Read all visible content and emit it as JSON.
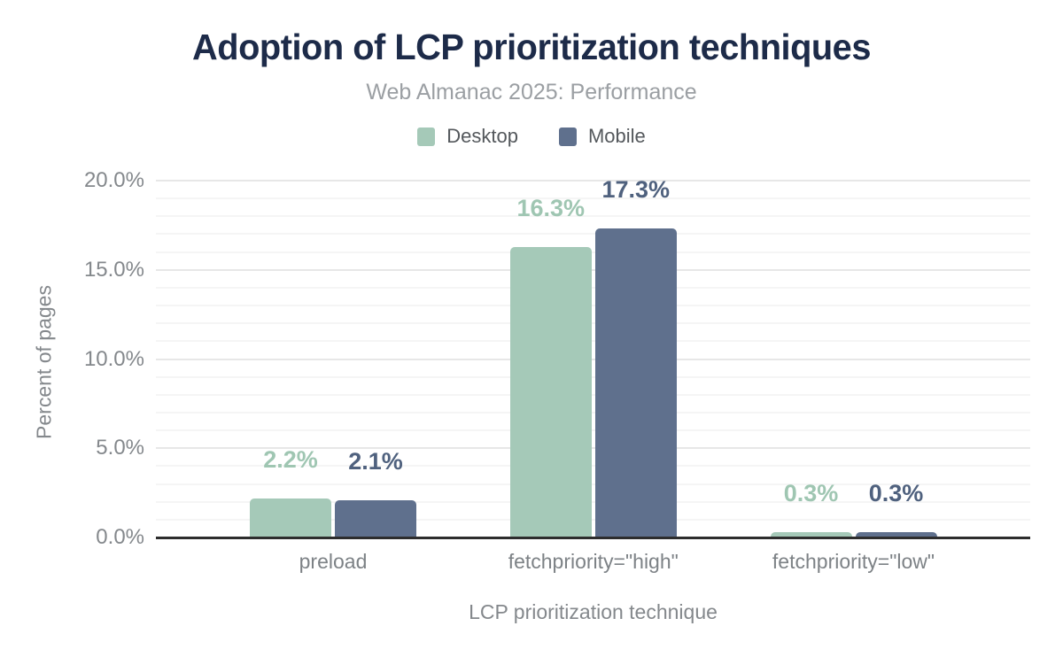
{
  "header": {
    "title": "Adoption of LCP prioritization techniques",
    "subtitle": "Web Almanac 2025: Performance"
  },
  "legend": {
    "items": [
      {
        "name": "desktop",
        "label": "Desktop",
        "color": "#a5c9b8"
      },
      {
        "name": "mobile",
        "label": "Mobile",
        "color": "#5f708d"
      }
    ]
  },
  "chart_data": {
    "type": "bar",
    "title": "Adoption of LCP prioritization techniques",
    "subtitle": "Web Almanac 2025: Performance",
    "categories": [
      "preload",
      "fetchpriority=\"high\"",
      "fetchpriority=\"low\""
    ],
    "series": [
      {
        "name": "Desktop",
        "color": "#a5c9b8",
        "label_color": "#9fc6b2",
        "values": [
          2.2,
          16.3,
          0.3
        ],
        "labels": [
          "2.2%",
          "16.3%",
          "0.3%"
        ]
      },
      {
        "name": "Mobile",
        "color": "#5f708d",
        "label_color": "#4f617e",
        "values": [
          2.1,
          17.3,
          0.3
        ],
        "labels": [
          "2.1%",
          "17.3%",
          "0.3%"
        ]
      }
    ],
    "xlabel": "LCP prioritization technique",
    "ylabel": "Percent of pages",
    "ylim": [
      0,
      20
    ],
    "y_ticks": [
      {
        "label": "0.0%",
        "value": 0
      },
      {
        "label": "5.0%",
        "value": 5
      },
      {
        "label": "10.0%",
        "value": 10
      },
      {
        "label": "15.0%",
        "value": 15
      },
      {
        "label": "20.0%",
        "value": 20
      }
    ],
    "grid": {
      "minor_step": 1,
      "major_step": 5,
      "shown": true
    },
    "legend_position": "top"
  },
  "colors": {
    "title": "#1d2b49",
    "subtitle": "#9b9fa3",
    "axis_text": "#84888c",
    "legend_text": "#54585c",
    "axis_line": "#2d2d2d",
    "grid_major": "#e7e7e7",
    "grid_minor": "#f5f5f5"
  }
}
